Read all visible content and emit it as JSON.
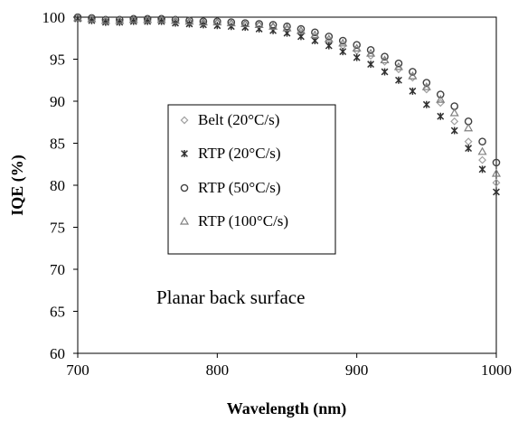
{
  "chart_data": {
    "type": "scatter",
    "title": "",
    "xlabel": "Wavelength (nm)",
    "ylabel": "IQE (%)",
    "xlim": [
      700,
      1000
    ],
    "ylim": [
      60,
      100
    ],
    "x_ticks": [
      700,
      800,
      900,
      1000
    ],
    "y_ticks": [
      60,
      65,
      70,
      75,
      80,
      85,
      90,
      95,
      100
    ],
    "grid": false,
    "legend_position": "center-left",
    "annotation": "Planar back surface",
    "x": [
      700,
      710,
      720,
      730,
      740,
      750,
      760,
      770,
      780,
      790,
      800,
      810,
      820,
      830,
      840,
      850,
      860,
      870,
      880,
      890,
      900,
      910,
      920,
      930,
      940,
      950,
      960,
      970,
      980,
      990,
      1000
    ],
    "series": [
      {
        "name": "Belt (20°C/s)",
        "marker": "diamond",
        "color": "#a0a0a0",
        "values": [
          99.8,
          99.7,
          99.5,
          99.5,
          99.6,
          99.6,
          99.6,
          99.5,
          99.4,
          99.3,
          99.3,
          99.2,
          99.1,
          99.0,
          98.8,
          98.5,
          98.1,
          97.6,
          97.1,
          96.6,
          96.0,
          95.4,
          94.7,
          93.8,
          92.8,
          91.4,
          89.8,
          87.6,
          85.2,
          83.0,
          80.3
        ]
      },
      {
        "name": "RTP (20°C/s)",
        "marker": "asterisk",
        "color": "#303030",
        "values": [
          99.8,
          99.6,
          99.4,
          99.4,
          99.5,
          99.5,
          99.5,
          99.3,
          99.2,
          99.1,
          99.0,
          98.9,
          98.8,
          98.6,
          98.4,
          98.1,
          97.7,
          97.2,
          96.6,
          95.9,
          95.2,
          94.4,
          93.5,
          92.5,
          91.2,
          89.6,
          88.2,
          86.5,
          84.4,
          81.9,
          79.2
        ]
      },
      {
        "name": "RTP (50°C/s)",
        "marker": "circle",
        "color": "#404040",
        "values": [
          100.0,
          99.9,
          99.7,
          99.7,
          99.8,
          99.8,
          99.8,
          99.7,
          99.6,
          99.5,
          99.5,
          99.4,
          99.3,
          99.2,
          99.1,
          98.9,
          98.6,
          98.2,
          97.7,
          97.2,
          96.7,
          96.1,
          95.3,
          94.5,
          93.5,
          92.2,
          90.8,
          89.4,
          87.6,
          85.2,
          82.7
        ]
      },
      {
        "name": "RTP (100°C/s)",
        "marker": "triangle",
        "color": "#808080",
        "values": [
          99.9,
          99.8,
          99.6,
          99.6,
          99.7,
          99.7,
          99.7,
          99.6,
          99.5,
          99.4,
          99.4,
          99.3,
          99.2,
          99.1,
          98.9,
          98.7,
          98.4,
          97.9,
          97.4,
          96.9,
          96.3,
          95.7,
          94.9,
          94.1,
          93.0,
          91.7,
          90.2,
          88.6,
          86.8,
          84.0,
          81.4
        ]
      }
    ]
  }
}
